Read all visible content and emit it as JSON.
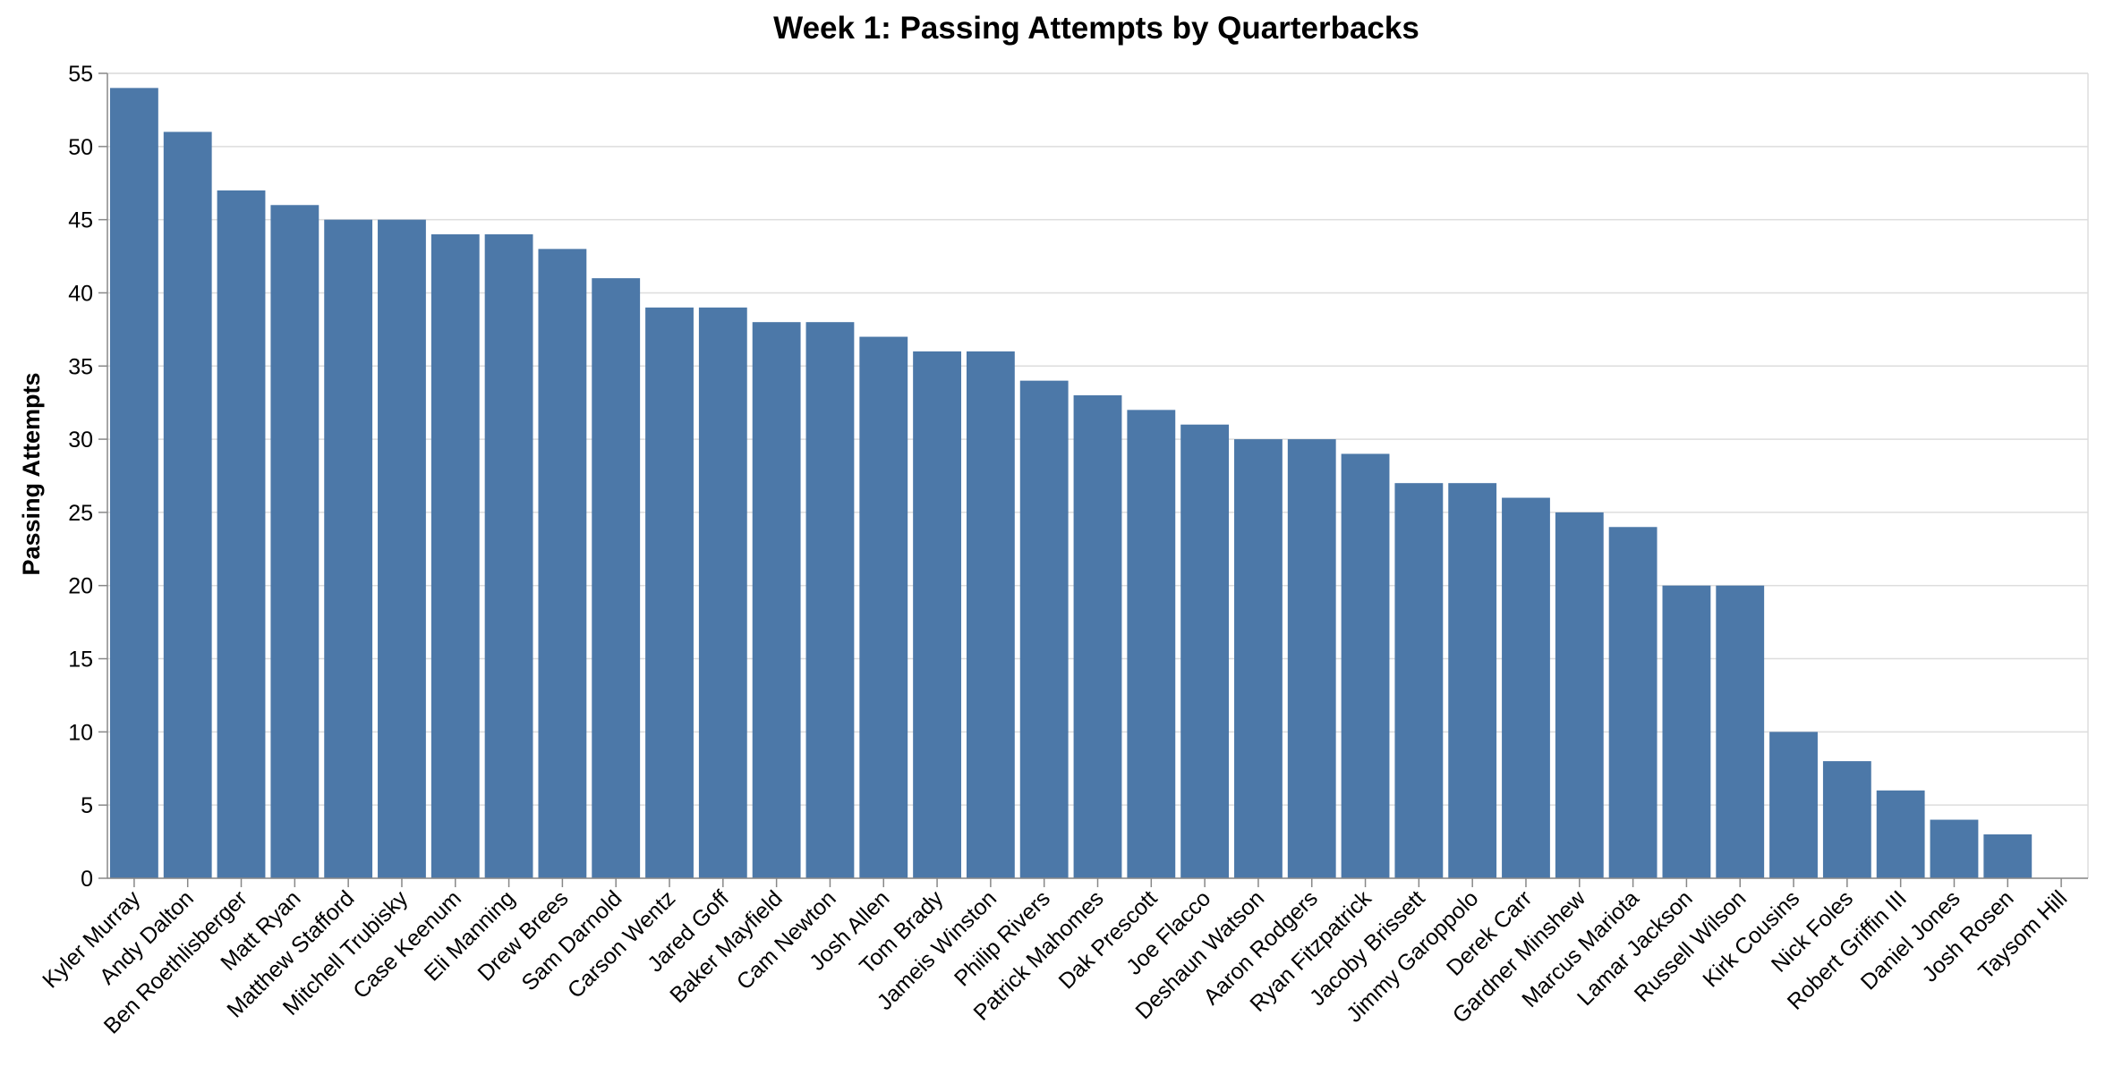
{
  "chart_data": {
    "type": "bar",
    "title": "Week 1: Passing Attempts by Quarterbacks",
    "xlabel": "",
    "ylabel": "Passing Attempts",
    "ylim": [
      0,
      55
    ],
    "yticks": [
      0,
      5,
      10,
      15,
      20,
      25,
      30,
      35,
      40,
      45,
      50,
      55
    ],
    "grid": true,
    "bar_color": "#4c78a8",
    "categories": [
      "Kyler Murray",
      "Andy Dalton",
      "Ben Roethlisberger",
      "Matt Ryan",
      "Matthew Stafford",
      "Mitchell Trubisky",
      "Case Keenum",
      "Eli Manning",
      "Drew Brees",
      "Sam Darnold",
      "Carson Wentz",
      "Jared Goff",
      "Baker Mayfield",
      "Cam Newton",
      "Josh Allen",
      "Tom Brady",
      "Jameis Winston",
      "Philip Rivers",
      "Patrick Mahomes",
      "Dak Prescott",
      "Joe Flacco",
      "Deshaun Watson",
      "Aaron Rodgers",
      "Ryan Fitzpatrick",
      "Jacoby Brissett",
      "Jimmy Garoppolo",
      "Derek Carr",
      "Gardner Minshew",
      "Marcus Mariota",
      "Lamar Jackson",
      "Russell Wilson",
      "Kirk Cousins",
      "Nick Foles",
      "Robert Griffin III",
      "Daniel Jones",
      "Josh Rosen",
      "Taysom Hill"
    ],
    "values": [
      54,
      51,
      47,
      46,
      45,
      45,
      44,
      44,
      43,
      41,
      39,
      39,
      38,
      38,
      37,
      36,
      36,
      34,
      33,
      32,
      31,
      30,
      30,
      29,
      27,
      27,
      26,
      25,
      24,
      20,
      20,
      10,
      8,
      6,
      4,
      3,
      0
    ]
  }
}
